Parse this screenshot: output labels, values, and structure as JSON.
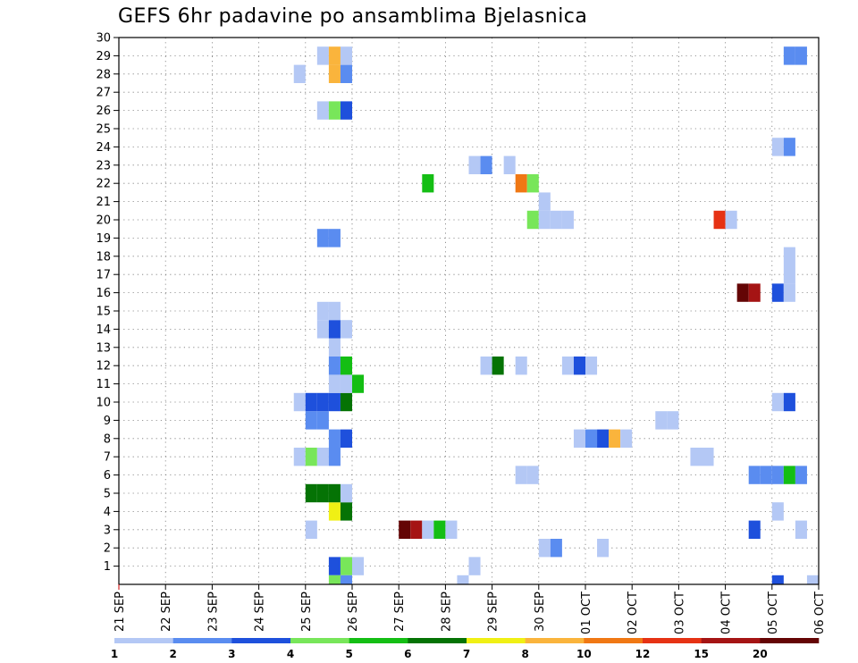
{
  "title": "GEFS 6hr padavine po ansamblima Bjelasnica",
  "chart_data": {
    "type": "heatmap",
    "title": "GEFS 6hr padavine po ansamblima Bjelasnica",
    "y_categories": [
      "1",
      "2",
      "3",
      "4",
      "5",
      "6",
      "7",
      "8",
      "9",
      "10",
      "11",
      "12",
      "13",
      "14",
      "15",
      "16",
      "17",
      "18",
      "19",
      "20",
      "21",
      "22",
      "23",
      "24",
      "25",
      "26",
      "27",
      "28",
      "29",
      "30"
    ],
    "x_tick_labels": [
      "21 SEP",
      "22 SEP",
      "23 SEP",
      "24 SEP",
      "25 SEP",
      "26 SEP",
      "27 SEP",
      "28 SEP",
      "29 SEP",
      "30 SEP",
      "01 OCT",
      "02 OCT",
      "03 OCT",
      "04 OCT",
      "05 OCT",
      "06 OCT"
    ],
    "x_range": [
      "21 SEP 00Z",
      "06 OCT 00Z"
    ],
    "y_range": [
      0,
      30
    ],
    "grid": true,
    "colorbar": {
      "thresholds": [
        1,
        2,
        3,
        4,
        5,
        6,
        7,
        8,
        10,
        12,
        15,
        20
      ],
      "labels": [
        "1",
        "2",
        "3",
        "4",
        "5",
        "6",
        "7",
        "8",
        "10",
        "12",
        "15",
        "20"
      ],
      "colors": [
        "#b4c8f5",
        "#5a8cf0",
        "#1e50dc",
        "#78e65a",
        "#14be14",
        "#057305",
        "#f0f014",
        "#fab43c",
        "#f07814",
        "#e63214",
        "#a51414",
        "#640505"
      ]
    },
    "cells": [
      {
        "member": 1,
        "time": "25 SEP 12Z",
        "value": 3
      },
      {
        "member": 1,
        "time": "25 SEP 18Z",
        "value": 4
      },
      {
        "member": 1,
        "time": "26 SEP 00Z",
        "value": 1
      },
      {
        "member": 1,
        "time": "28 SEP 12Z",
        "value": 1
      },
      {
        "member": 2,
        "time": "30 SEP 00Z",
        "value": 1
      },
      {
        "member": 2,
        "time": "30 SEP 06Z",
        "value": 2
      },
      {
        "member": 2,
        "time": "01 OCT 06Z",
        "value": 1
      },
      {
        "member": 3,
        "time": "25 SEP 00Z",
        "value": 1
      },
      {
        "member": 3,
        "time": "27 SEP 00Z",
        "value": 20
      },
      {
        "member": 3,
        "time": "27 SEP 06Z",
        "value": 15
      },
      {
        "member": 3,
        "time": "27 SEP 12Z",
        "value": 1
      },
      {
        "member": 3,
        "time": "27 SEP 18Z",
        "value": 5
      },
      {
        "member": 3,
        "time": "28 SEP 00Z",
        "value": 1
      },
      {
        "member": 3,
        "time": "04 OCT 12Z",
        "value": 3
      },
      {
        "member": 3,
        "time": "05 OCT 12Z",
        "value": 1
      },
      {
        "member": 4,
        "time": "25 SEP 12Z",
        "value": 7
      },
      {
        "member": 4,
        "time": "25 SEP 18Z",
        "value": 6
      },
      {
        "member": 4,
        "time": "05 OCT 00Z",
        "value": 1
      },
      {
        "member": 5,
        "time": "25 SEP 00Z",
        "value": 6
      },
      {
        "member": 5,
        "time": "25 SEP 06Z",
        "value": 6
      },
      {
        "member": 5,
        "time": "25 SEP 12Z",
        "value": 6
      },
      {
        "member": 5,
        "time": "25 SEP 18Z",
        "value": 1
      },
      {
        "member": 6,
        "time": "29 SEP 12Z",
        "value": 1
      },
      {
        "member": 6,
        "time": "29 SEP 18Z",
        "value": 1
      },
      {
        "member": 6,
        "time": "04 OCT 12Z",
        "value": 2
      },
      {
        "member": 6,
        "time": "04 OCT 18Z",
        "value": 2
      },
      {
        "member": 6,
        "time": "05 OCT 00Z",
        "value": 2
      },
      {
        "member": 6,
        "time": "05 OCT 06Z",
        "value": 5
      },
      {
        "member": 6,
        "time": "05 OCT 12Z",
        "value": 2
      },
      {
        "member": 7,
        "time": "24 SEP 18Z",
        "value": 1
      },
      {
        "member": 7,
        "time": "25 SEP 00Z",
        "value": 4
      },
      {
        "member": 7,
        "time": "25 SEP 06Z",
        "value": 1
      },
      {
        "member": 7,
        "time": "25 SEP 12Z",
        "value": 2
      },
      {
        "member": 7,
        "time": "03 OCT 06Z",
        "value": 1
      },
      {
        "member": 7,
        "time": "03 OCT 12Z",
        "value": 1
      },
      {
        "member": 8,
        "time": "25 SEP 12Z",
        "value": 2
      },
      {
        "member": 8,
        "time": "25 SEP 18Z",
        "value": 3
      },
      {
        "member": 8,
        "time": "30 SEP 18Z",
        "value": 1
      },
      {
        "member": 8,
        "time": "01 OCT 00Z",
        "value": 2
      },
      {
        "member": 8,
        "time": "01 OCT 06Z",
        "value": 3
      },
      {
        "member": 8,
        "time": "01 OCT 12Z",
        "value": 8
      },
      {
        "member": 8,
        "time": "01 OCT 18Z",
        "value": 1
      },
      {
        "member": 8,
        "time": "06 OCT 06Z",
        "value": 3
      },
      {
        "member": 8,
        "time": "06 OCT 12Z",
        "value": 1
      },
      {
        "member": 8,
        "time": "06 OCT 18Z",
        "value": 1
      },
      {
        "member": 8,
        "time": "07 OCT 00Z",
        "value": 8
      },
      {
        "member": 9,
        "time": "25 SEP 00Z",
        "value": 2
      },
      {
        "member": 9,
        "time": "25 SEP 06Z",
        "value": 2
      },
      {
        "member": 9,
        "time": "02 OCT 12Z",
        "value": 1
      },
      {
        "member": 9,
        "time": "02 OCT 18Z",
        "value": 1
      },
      {
        "member": 10,
        "time": "24 SEP 18Z",
        "value": 1
      },
      {
        "member": 10,
        "time": "25 SEP 00Z",
        "value": 3
      },
      {
        "member": 10,
        "time": "25 SEP 06Z",
        "value": 3
      },
      {
        "member": 10,
        "time": "25 SEP 12Z",
        "value": 3
      },
      {
        "member": 10,
        "time": "25 SEP 18Z",
        "value": 6
      },
      {
        "member": 10,
        "time": "05 OCT 00Z",
        "value": 1
      },
      {
        "member": 10,
        "time": "05 OCT 06Z",
        "value": 3
      },
      {
        "member": 11,
        "time": "25 SEP 12Z",
        "value": 1
      },
      {
        "member": 11,
        "time": "25 SEP 18Z",
        "value": 1
      },
      {
        "member": 11,
        "time": "26 SEP 00Z",
        "value": 5
      },
      {
        "member": 12,
        "time": "25 SEP 12Z",
        "value": 2
      },
      {
        "member": 12,
        "time": "25 SEP 18Z",
        "value": 5
      },
      {
        "member": 12,
        "time": "28 SEP 18Z",
        "value": 1
      },
      {
        "member": 12,
        "time": "29 SEP 00Z",
        "value": 6
      },
      {
        "member": 12,
        "time": "29 SEP 12Z",
        "value": 1
      },
      {
        "member": 12,
        "time": "30 SEP 12Z",
        "value": 1
      },
      {
        "member": 12,
        "time": "30 SEP 18Z",
        "value": 3
      },
      {
        "member": 12,
        "time": "01 OCT 00Z",
        "value": 1
      },
      {
        "member": 13,
        "time": "25 SEP 12Z",
        "value": 1
      },
      {
        "member": 14,
        "time": "25 SEP 06Z",
        "value": 1
      },
      {
        "member": 14,
        "time": "25 SEP 12Z",
        "value": 3
      },
      {
        "member": 14,
        "time": "25 SEP 18Z",
        "value": 1
      },
      {
        "member": 14,
        "time": "06 OCT 18Z",
        "value": 4
      },
      {
        "member": 15,
        "time": "25 SEP 06Z",
        "value": 1
      },
      {
        "member": 15,
        "time": "25 SEP 12Z",
        "value": 1
      },
      {
        "member": 16,
        "time": "04 OCT 06Z",
        "value": 20
      },
      {
        "member": 16,
        "time": "04 OCT 12Z",
        "value": 15
      },
      {
        "member": 16,
        "time": "05 OCT 00Z",
        "value": 3
      },
      {
        "member": 16,
        "time": "05 OCT 06Z",
        "value": 1
      },
      {
        "member": 17,
        "time": "05 OCT 06Z",
        "value": 1
      },
      {
        "member": 18,
        "time": "05 OCT 06Z",
        "value": 1
      },
      {
        "member": 19,
        "time": "25 SEP 06Z",
        "value": 2
      },
      {
        "member": 19,
        "time": "25 SEP 12Z",
        "value": 2
      },
      {
        "member": 20,
        "time": "29 SEP 18Z",
        "value": 4
      },
      {
        "member": 20,
        "time": "30 SEP 00Z",
        "value": 1
      },
      {
        "member": 20,
        "time": "30 SEP 06Z",
        "value": 1
      },
      {
        "member": 20,
        "time": "30 SEP 12Z",
        "value": 1
      },
      {
        "member": 20,
        "time": "03 OCT 18Z",
        "value": 12
      },
      {
        "member": 20,
        "time": "04 OCT 00Z",
        "value": 1
      },
      {
        "member": 21,
        "time": "30 SEP 00Z",
        "value": 1
      },
      {
        "member": 22,
        "time": "27 SEP 12Z",
        "value": 5
      },
      {
        "member": 22,
        "time": "29 SEP 12Z",
        "value": 10
      },
      {
        "member": 22,
        "time": "29 SEP 18Z",
        "value": 4
      },
      {
        "member": 23,
        "time": "28 SEP 12Z",
        "value": 1
      },
      {
        "member": 23,
        "time": "28 SEP 18Z",
        "value": 2
      },
      {
        "member": 23,
        "time": "29 SEP 06Z",
        "value": 1
      },
      {
        "member": 24,
        "time": "05 OCT 00Z",
        "value": 1
      },
      {
        "member": 24,
        "time": "05 OCT 06Z",
        "value": 2
      },
      {
        "member": 24,
        "time": "06 OCT 18Z",
        "value": 3
      },
      {
        "member": 26,
        "time": "25 SEP 06Z",
        "value": 1
      },
      {
        "member": 26,
        "time": "25 SEP 12Z",
        "value": 4
      },
      {
        "member": 26,
        "time": "25 SEP 18Z",
        "value": 3
      },
      {
        "member": 26,
        "time": "06 OCT 06Z",
        "value": 1
      },
      {
        "member": 26,
        "time": "06 OCT 12Z",
        "value": 1
      },
      {
        "member": 26,
        "time": "06 OCT 18Z",
        "value": 2
      },
      {
        "member": 26,
        "time": "07 OCT 00Z",
        "value": 4
      },
      {
        "member": 28,
        "time": "24 SEP 18Z",
        "value": 1
      },
      {
        "member": 28,
        "time": "25 SEP 12Z",
        "value": 8
      },
      {
        "member": 28,
        "time": "25 SEP 18Z",
        "value": 2
      },
      {
        "member": 29,
        "time": "25 SEP 06Z",
        "value": 1
      },
      {
        "member": 29,
        "time": "25 SEP 12Z",
        "value": 8
      },
      {
        "member": 29,
        "time": "25 SEP 18Z",
        "value": 1
      },
      {
        "member": 29,
        "time": "05 OCT 06Z",
        "value": 2
      },
      {
        "member": 29,
        "time": "05 OCT 12Z",
        "value": 2
      },
      {
        "member": 29,
        "time": "06 OCT 12Z",
        "value": 1
      },
      {
        "member": 30,
        "time": "06 OCT 12Z",
        "value": 6
      },
      {
        "member": 0,
        "time": "25 SEP 12Z",
        "value": 4
      },
      {
        "member": 0,
        "time": "25 SEP 18Z",
        "value": 2
      },
      {
        "member": 0,
        "time": "28 SEP 06Z",
        "value": 1
      },
      {
        "member": 0,
        "time": "05 OCT 00Z",
        "value": 3
      },
      {
        "member": 0,
        "time": "05 OCT 18Z",
        "value": 1
      }
    ]
  }
}
